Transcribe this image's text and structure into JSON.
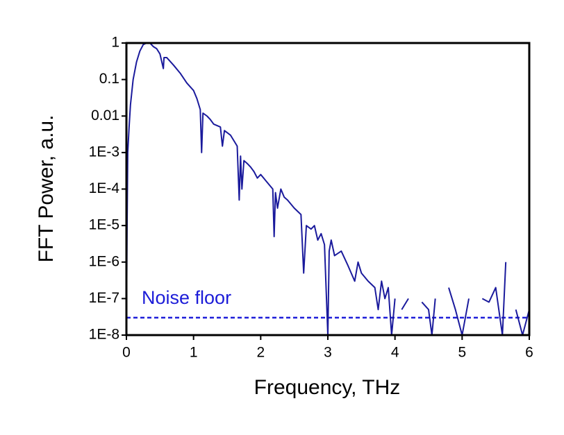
{
  "chart_data": {
    "type": "line",
    "x_label": "Frequency, THz",
    "y_label": "FFT Power, a.u.",
    "y_log": true,
    "grid": false,
    "xlim": [
      0,
      6
    ],
    "xticks": [
      0,
      1,
      2,
      3,
      4,
      5,
      6
    ],
    "ylim": [
      1e-08,
      1
    ],
    "yticks": [
      {
        "value": 1e-08,
        "label": "1E-8"
      },
      {
        "value": 1e-07,
        "label": "1E-7"
      },
      {
        "value": 1e-06,
        "label": "1E-6"
      },
      {
        "value": 1e-05,
        "label": "1E-5"
      },
      {
        "value": 0.0001,
        "label": "1E-4"
      },
      {
        "value": 0.001,
        "label": "1E-3"
      },
      0.01,
      0.1,
      1
    ],
    "noise_floor": {
      "label": "Noise floor",
      "value": 3e-08,
      "color": "#1c1cd8"
    },
    "series": [
      {
        "color": "#1a1a9c",
        "x": [
          0,
          0.01,
          0.02,
          0.04,
          0.06,
          0.1,
          0.15,
          0.2,
          0.25,
          0.3,
          0.35,
          0.4,
          0.45,
          0.5,
          0.55,
          0.56,
          0.6,
          0.7,
          0.8,
          0.9,
          1.0,
          1.05,
          1.1,
          1.12,
          1.14,
          1.2,
          1.25,
          1.3,
          1.4,
          1.43,
          1.46,
          1.55,
          1.65,
          1.68,
          1.7,
          1.72,
          1.75,
          1.8,
          1.85,
          1.9,
          1.95,
          2.0,
          2.1,
          2.18,
          2.2,
          2.22,
          2.25,
          2.3,
          2.35,
          2.4,
          2.5,
          2.6,
          2.64,
          2.68,
          2.75,
          2.8,
          2.85,
          2.9,
          2.95,
          3.0,
          3.02,
          3.05,
          3.1,
          3.2,
          3.3,
          3.4,
          3.45,
          3.5,
          3.6,
          3.7,
          3.75,
          3.8,
          3.85,
          3.9,
          3.95,
          4.0,
          4.05,
          4.1,
          4.2,
          4.3,
          4.4,
          4.5,
          4.55,
          4.6,
          4.7,
          4.8,
          4.9,
          5.0,
          5.1,
          5.2,
          5.3,
          5.4,
          5.5,
          5.6,
          5.65,
          5.7,
          5.8,
          5.9,
          6.0
        ],
        "values": [
          1e-08,
          1e-05,
          0.001,
          0.005,
          0.02,
          0.1,
          0.3,
          0.6,
          0.9,
          1,
          1,
          0.8,
          0.7,
          0.5,
          0.2,
          0.4,
          0.4,
          0.25,
          0.15,
          0.08,
          0.05,
          0.03,
          0.015,
          0.001,
          0.012,
          0.01,
          0.008,
          0.006,
          0.005,
          0.0015,
          0.004,
          0.003,
          0.0015,
          5e-05,
          0.0008,
          0.0001,
          0.0006,
          0.0005,
          0.0004,
          0.0003,
          0.0002,
          0.00025,
          0.00015,
          0.0001,
          5e-06,
          8e-05,
          3e-05,
          0.0001,
          6e-05,
          5e-05,
          3e-05,
          2e-05,
          5e-07,
          1e-05,
          8e-06,
          1e-05,
          4e-06,
          6e-06,
          3e-06,
          1e-08,
          2e-06,
          4e-06,
          1.5e-06,
          2e-06,
          8e-07,
          3e-07,
          1e-06,
          5e-07,
          3e-07,
          2e-07,
          5e-08,
          3e-07,
          1e-07,
          2e-07,
          1e-08,
          1e-07,
          null,
          5e-08,
          1e-07,
          null,
          8e-08,
          5e-08,
          1e-08,
          1e-07,
          null,
          2e-07,
          5e-08,
          1e-08,
          1e-07,
          null,
          1e-07,
          8e-08,
          2e-07,
          1e-08,
          1e-06,
          null,
          5e-08,
          1e-08,
          5e-08
        ]
      }
    ]
  }
}
